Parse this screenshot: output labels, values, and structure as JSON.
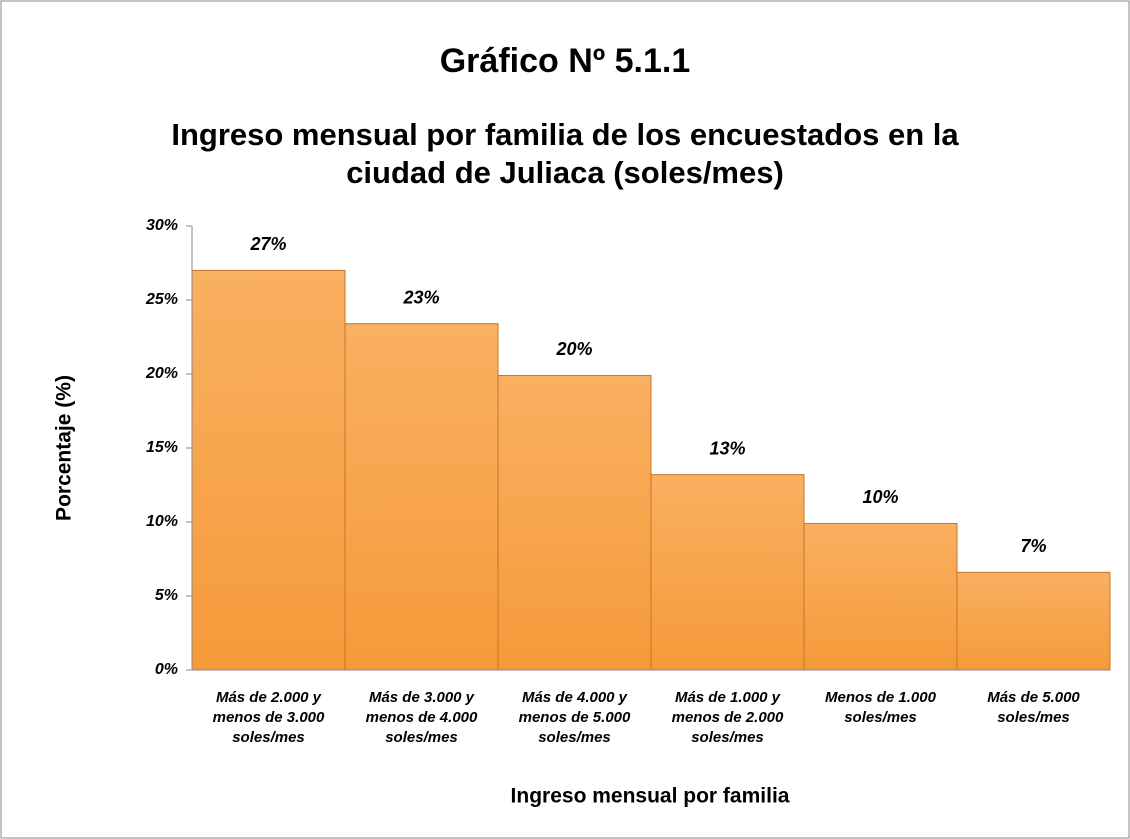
{
  "chart_data": {
    "type": "bar",
    "title": "Gráfico Nº 5.1.1",
    "subtitle": "Ingreso mensual por familia de los encuestados en la ciudad de Juliaca (soles/mes)",
    "x_label": "Ingreso mensual por familia",
    "y_label": "Porcentaje (%)",
    "categories": [
      "Más de 2.000 y menos de 3.000 soles/mes",
      "Más de 3.000 y menos de 4.000 soles/mes",
      "Más de 4.000 y menos de 5.000 soles/mes",
      "Más de 1.000 y menos de 2.000 soles/mes",
      "Menos de 1.000 soles/mes",
      "Más de 5.000 soles/mes"
    ],
    "values": [
      27,
      23.4,
      19.9,
      13.2,
      9.9,
      6.6
    ],
    "value_labels": [
      "27%",
      "23%",
      "20%",
      "13%",
      "10%",
      "7%"
    ],
    "color": "#f7a046",
    "ylim": [
      0,
      30
    ],
    "yticks": [
      {
        "value": 0,
        "label": "0%"
      },
      {
        "value": 5,
        "label": "5%"
      },
      {
        "value": 10,
        "label": "10%"
      },
      {
        "value": 15,
        "label": "15%"
      },
      {
        "value": 20,
        "label": "20%"
      },
      {
        "value": 25,
        "label": "25%"
      },
      {
        "value": 30,
        "label": "30%"
      }
    ],
    "grid": false
  }
}
